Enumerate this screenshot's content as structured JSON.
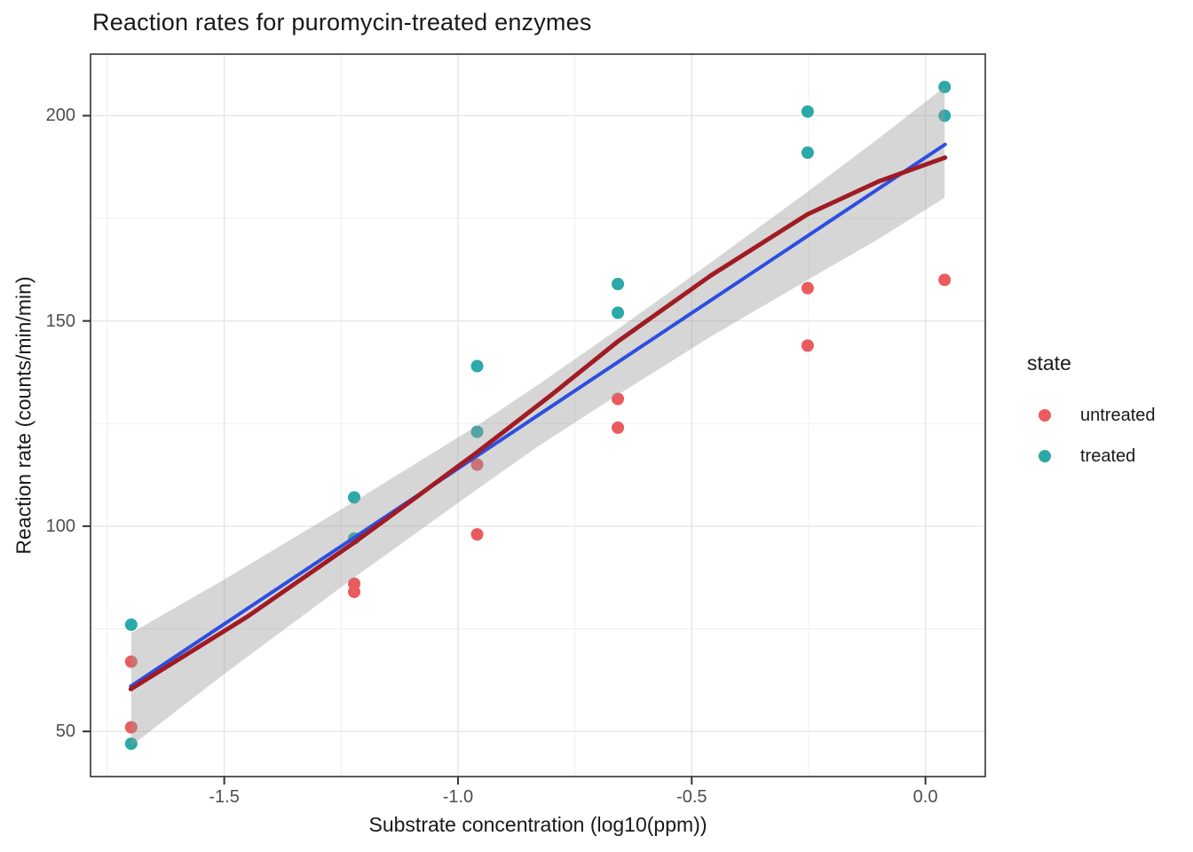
{
  "chart_data": {
    "type": "scatter",
    "title": "Reaction rates for puromycin-treated enzymes",
    "xlabel": "Substrate concentration (log10(ppm))",
    "ylabel": "Reaction rate (counts/min/min)",
    "xlim": [
      -1.786,
      0.128
    ],
    "ylim": [
      39,
      215
    ],
    "x_ticks": {
      "values": [
        -1.5,
        -1.0,
        -0.5,
        0.0
      ],
      "labels": [
        "-1.5",
        "-1.0",
        "-0.5",
        "0.0"
      ]
    },
    "y_ticks": {
      "values": [
        50,
        100,
        150,
        200
      ],
      "labels": [
        "50",
        "100",
        "150",
        "200"
      ]
    },
    "x_minor": [
      -1.75,
      -1.25,
      -0.75,
      -0.25
    ],
    "y_minor": [
      75,
      125,
      175
    ],
    "grid": {
      "on": true,
      "major_color": "#e3e3e3",
      "minor_color": "#efefef"
    },
    "panel": {
      "border_color": "#333333",
      "tick_color": "#333333"
    },
    "legend": {
      "title": "state",
      "position": "right",
      "items": [
        {
          "label": "untreated",
          "color": "#ea5b5e"
        },
        {
          "label": "treated",
          "color": "#2ba8a8"
        }
      ]
    },
    "series": [
      {
        "name": "untreated",
        "color": "#ea5b5e",
        "points": [
          [
            -1.699,
            67
          ],
          [
            -1.699,
            51
          ],
          [
            -1.222,
            84
          ],
          [
            -1.222,
            86
          ],
          [
            -0.959,
            98
          ],
          [
            -0.959,
            115
          ],
          [
            -0.658,
            131
          ],
          [
            -0.658,
            124
          ],
          [
            -0.252,
            144
          ],
          [
            -0.252,
            158
          ],
          [
            0.041,
            160
          ]
        ]
      },
      {
        "name": "treated",
        "color": "#2ba8a8",
        "points": [
          [
            -1.699,
            76
          ],
          [
            -1.699,
            47
          ],
          [
            -1.222,
            97
          ],
          [
            -1.222,
            107
          ],
          [
            -0.959,
            123
          ],
          [
            -0.959,
            139
          ],
          [
            -0.658,
            159
          ],
          [
            -0.658,
            152
          ],
          [
            -0.252,
            191
          ],
          [
            -0.252,
            201
          ],
          [
            0.041,
            207
          ],
          [
            0.041,
            200
          ]
        ]
      }
    ],
    "fits": [
      {
        "name": "linear-fit",
        "color": "#2c4fe0",
        "width": 4,
        "points": [
          [
            -1.7,
            61.0
          ],
          [
            0.042,
            193.0
          ]
        ]
      },
      {
        "name": "loess-fit",
        "color": "#a01b24",
        "width": 5,
        "points": [
          [
            -1.7,
            60.3
          ],
          [
            -1.45,
            78
          ],
          [
            -1.222,
            96
          ],
          [
            -1.09,
            107
          ],
          [
            -0.959,
            118
          ],
          [
            -0.8,
            132
          ],
          [
            -0.658,
            145
          ],
          [
            -0.46,
            161
          ],
          [
            -0.252,
            176
          ],
          [
            -0.1,
            184
          ],
          [
            0.042,
            189.8
          ]
        ]
      }
    ],
    "confidence_band": {
      "color": "#999999",
      "opacity": 0.4,
      "x": [
        -1.699,
        -1.5,
        -1.222,
        -0.959,
        -0.828,
        -0.658,
        -0.462,
        -0.252,
        -0.1,
        0.041
      ],
      "upper": [
        74,
        87,
        106,
        124.5,
        134.5,
        148,
        164,
        181.5,
        194.5,
        207
      ],
      "lower": [
        46.5,
        64,
        87.5,
        109,
        119.5,
        132,
        146,
        160,
        170,
        180
      ]
    }
  }
}
